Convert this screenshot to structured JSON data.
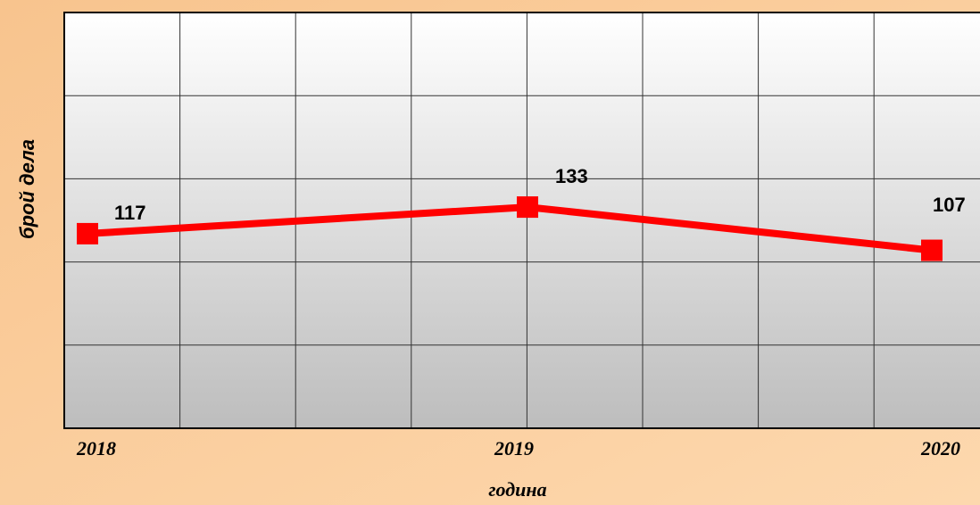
{
  "chart_data": {
    "type": "line",
    "x_label": "година",
    "y_label": "брой дела",
    "categories": [
      "2018",
      "2019",
      "2020"
    ],
    "series": [
      {
        "name": "брой дела",
        "color": "#ff0000",
        "values": [
          117,
          133,
          107
        ]
      }
    ],
    "ylim": [
      0,
      250
    ],
    "yticks": [
      0,
      50,
      100,
      150,
      200,
      250
    ],
    "grid": true
  }
}
